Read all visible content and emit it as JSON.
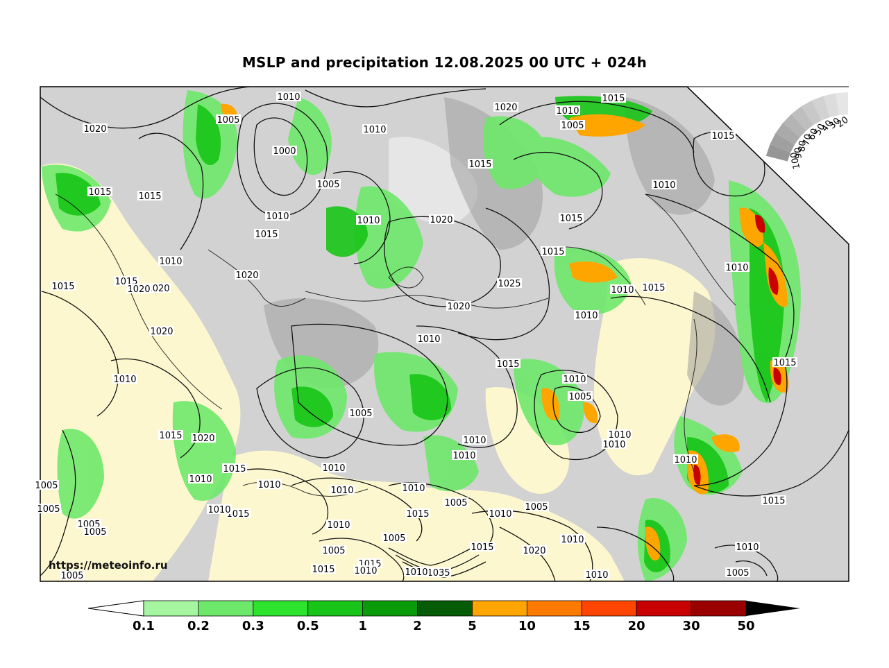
{
  "title": "MSLP and precipitation 12.08.2025 00 UTC + 024h",
  "watermark": "https://meteoinfo.ru",
  "colorbar": {
    "ticks": [
      "0.1",
      "0.2",
      "0.3",
      "0.5",
      "1",
      "2",
      "5",
      "10",
      "15",
      "20",
      "30",
      "50"
    ],
    "colors": [
      "#a6f5a0",
      "#6ee86a",
      "#2ee32e",
      "#17c417",
      "#0a9b0a",
      "#065c06",
      "#ffa500",
      "#ff7a00",
      "#ff4500",
      "#c80000",
      "#9b0000"
    ],
    "under_color": "#ffffff",
    "over_color": "#000000"
  },
  "humidity_scale": {
    "labels": [
      "100",
      "90",
      "80",
      "70",
      "60",
      "50",
      "40",
      "30",
      "20"
    ]
  },
  "isobar_labels": [
    {
      "text": "1010"
    },
    {
      "text": "1020"
    },
    {
      "text": "1005"
    },
    {
      "text": "1000"
    },
    {
      "text": "1005"
    },
    {
      "text": "1010"
    },
    {
      "text": "1020"
    },
    {
      "text": "1010"
    },
    {
      "text": "1015"
    },
    {
      "text": "1015"
    },
    {
      "text": "1010"
    },
    {
      "text": "1005"
    },
    {
      "text": "1015"
    },
    {
      "text": "1010"
    },
    {
      "text": "1015"
    },
    {
      "text": "1015"
    },
    {
      "text": "1010"
    },
    {
      "text": "1015"
    },
    {
      "text": "1020"
    },
    {
      "text": "1015"
    },
    {
      "text": "1020"
    },
    {
      "text": "1020"
    },
    {
      "text": "1015"
    },
    {
      "text": "1010"
    },
    {
      "text": "1010"
    },
    {
      "text": "1025"
    },
    {
      "text": "1010"
    },
    {
      "text": "1015"
    },
    {
      "text": "1010"
    },
    {
      "text": "1020"
    },
    {
      "text": "1010"
    },
    {
      "text": "1015"
    },
    {
      "text": "1020"
    },
    {
      "text": "1015"
    },
    {
      "text": "1010"
    },
    {
      "text": "1015"
    },
    {
      "text": "1010"
    },
    {
      "text": "1005"
    },
    {
      "text": "1005"
    },
    {
      "text": "1010"
    },
    {
      "text": "1010"
    },
    {
      "text": "1010"
    },
    {
      "text": "1010"
    },
    {
      "text": "1010"
    },
    {
      "text": "1010"
    },
    {
      "text": "1015"
    },
    {
      "text": "1020"
    },
    {
      "text": "1015"
    },
    {
      "text": "1010"
    },
    {
      "text": "1005"
    },
    {
      "text": "1010"
    },
    {
      "text": "1015"
    },
    {
      "text": "1015"
    },
    {
      "text": "1010"
    },
    {
      "text": "1005"
    },
    {
      "text": "1005"
    },
    {
      "text": "1010"
    },
    {
      "text": "1005"
    },
    {
      "text": "1010"
    },
    {
      "text": "1015"
    },
    {
      "text": "1010"
    },
    {
      "text": "1010"
    },
    {
      "text": "1015"
    },
    {
      "text": "1010"
    },
    {
      "text": "1010"
    },
    {
      "text": "1015"
    },
    {
      "text": "1010"
    },
    {
      "text": "1005"
    },
    {
      "text": "1005"
    },
    {
      "text": "1005"
    },
    {
      "text": "1005"
    },
    {
      "text": "1010"
    },
    {
      "text": "1020"
    },
    {
      "text": "1035"
    },
    {
      "text": "1010"
    },
    {
      "text": "1005"
    },
    {
      "text": "1015"
    },
    {
      "text": "1005"
    },
    {
      "text": "1015"
    },
    {
      "text": "1020"
    }
  ]
}
